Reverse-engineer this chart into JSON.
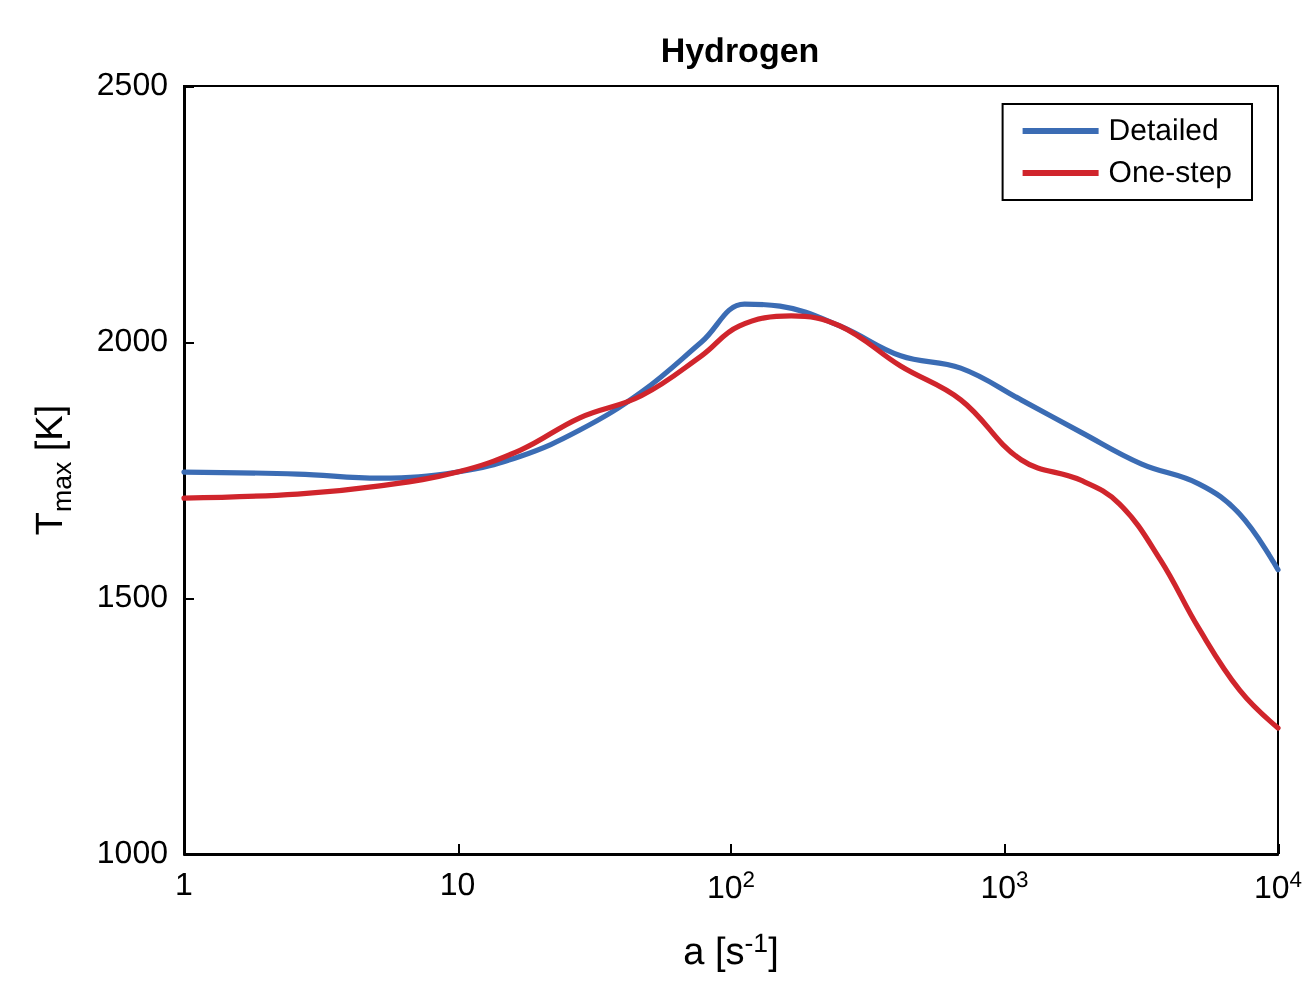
{
  "chart_data": {
    "type": "line",
    "title": "Hydrogen",
    "xlabel": "a [s$^{-1}$]",
    "ylabel": "T$_{max}$ [K]",
    "log": "x",
    "xlim": [
      1,
      10000
    ],
    "xticks": [
      1,
      10,
      {
        "value": 100,
        "label": "10$^{2}$"
      },
      {
        "value": 1000,
        "label": "10$^{3}$"
      },
      {
        "value": 10000,
        "label": "10$^{4}$"
      }
    ],
    "ylim": [
      1000,
      2500
    ],
    "yticks": [
      1000,
      1500,
      2000,
      2500
    ],
    "grid": false,
    "legend": "top right",
    "line_style": "solid",
    "marker": "none",
    "series": [
      {
        "name": "Detailed",
        "color": "#3b6cb4",
        "x": [
          1,
          2.6,
          5.2,
          10,
          17,
          28,
          47,
          78,
          112,
          151,
          251,
          417,
          692,
          1150,
          1900,
          3160,
          5130,
          7240,
          10000
        ],
        "values": [
          1746,
          1742,
          1734,
          1746,
          1777,
          1828,
          1902,
          2000,
          2074,
          2070,
          2031,
          1973,
          1949,
          1887,
          1824,
          1762,
          1723,
          1664,
          1555
        ]
      },
      {
        "name": "One-step",
        "color": "#d0252c",
        "x": [
          1,
          2.6,
          5.2,
          10,
          17,
          28,
          47,
          78,
          107,
          166,
          251,
          417,
          692,
          1150,
          1900,
          2630,
          3720,
          5130,
          7240,
          10000
        ],
        "values": [
          1695,
          1703,
          1719,
          1746,
          1789,
          1852,
          1895,
          1973,
          2031,
          2051,
          2031,
          1953,
          1887,
          1770,
          1730,
          1684,
          1574,
          1441,
          1320,
          1246
        ]
      }
    ]
  }
}
